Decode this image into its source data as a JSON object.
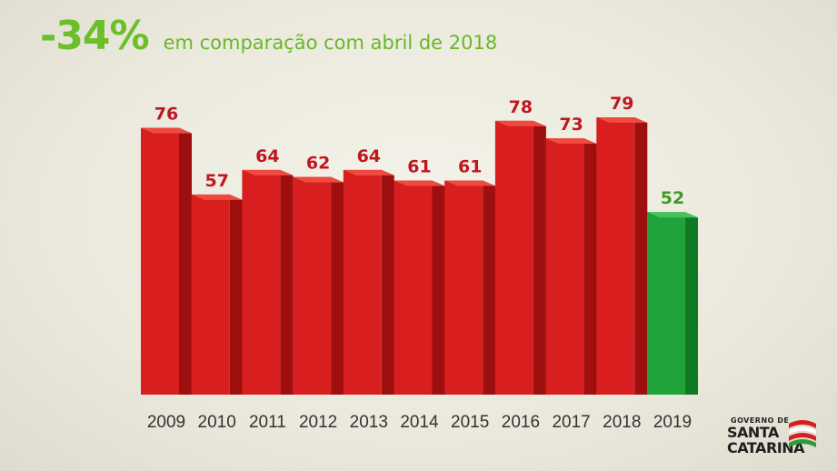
{
  "headline": {
    "percent": "-34%",
    "subtitle": "em comparação com abril de 2018"
  },
  "logo": {
    "line_small": "GOVERNO DE",
    "line1": "SANTA",
    "line2": "CATARINA"
  },
  "chart_data": {
    "type": "bar",
    "categories": [
      "2009",
      "2010",
      "2011",
      "2012",
      "2013",
      "2014",
      "2015",
      "2016",
      "2017",
      "2018",
      "2019"
    ],
    "values": [
      76,
      57,
      64,
      62,
      64,
      61,
      61,
      78,
      73,
      79,
      52
    ],
    "highlight_index": 10,
    "colors": {
      "bar": "#d81e1e",
      "bar_side": "#9e0f0f",
      "bar_top": "#ee4a40",
      "bar_highlight": "#1fa33a",
      "bar_highlight_side": "#0f7a24",
      "bar_highlight_top": "#49c25a",
      "label": "#c0161e",
      "label_highlight": "#3d9a26",
      "tick_label": "#333333"
    },
    "ylim": [
      0,
      79
    ],
    "grid": false,
    "legend": "none"
  }
}
